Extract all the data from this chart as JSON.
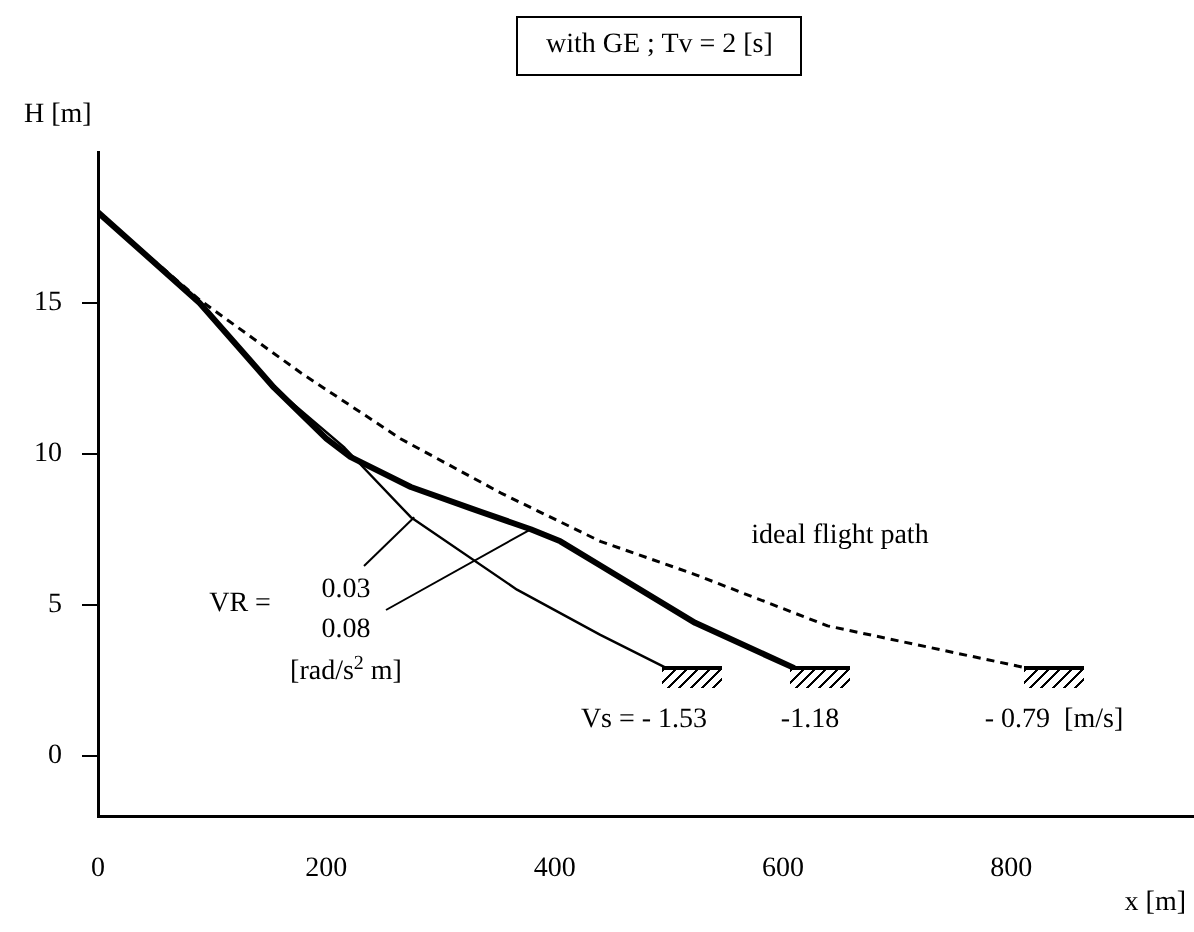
{
  "chart_data": {
    "type": "line",
    "title": "with GE ; Tv = 2 [s]",
    "xlabel": "x [m]",
    "ylabel": "H [m]",
    "series": [
      {
        "color": "#000000",
        "x": [
          0,
          89,
          154,
          216,
          274,
          367,
          440,
          498
        ],
        "values": [
          18,
          15,
          12.2,
          10.2,
          7.9,
          5.5,
          4,
          2.9
        ]
      },
      {
        "color": "#000000",
        "x": [
          0,
          89,
          154,
          200,
          221,
          274,
          326,
          379,
          405,
          440,
          523,
          610
        ],
        "values": [
          18,
          15,
          12.2,
          10.5,
          9.9,
          8.9,
          8.2,
          7.5,
          7.1,
          6.3,
          4.4,
          2.9
        ]
      },
      {
        "color": "#000000",
        "line_style": "dashed",
        "x": [
          0,
          89,
          177,
          265,
          353,
          440,
          523,
          639,
          814
        ],
        "values": [
          18,
          15.1,
          12.7,
          10.5,
          8.7,
          7.1,
          6,
          4.3,
          2.9
        ]
      }
    ],
    "xlim": [
      0,
      960
    ],
    "xticks": [
      0,
      200,
      400,
      600,
      800
    ],
    "ylim": [
      -2,
      20
    ],
    "yticks": [
      0,
      5,
      10,
      15
    ],
    "grid": false,
    "legend": false,
    "marker": "none",
    "annotations": [
      "VR =",
      {
        "text": "0.03",
        "x": 277,
        "y": 7.9
      },
      {
        "text": "0.08",
        "x": 379,
        "y": 7.5
      },
      "[rad/s$^{2}$ m]",
      "ideal flight path",
      "Vs = - 1.53",
      "-1.18",
      "- 0.79  [m/s]"
    ]
  }
}
